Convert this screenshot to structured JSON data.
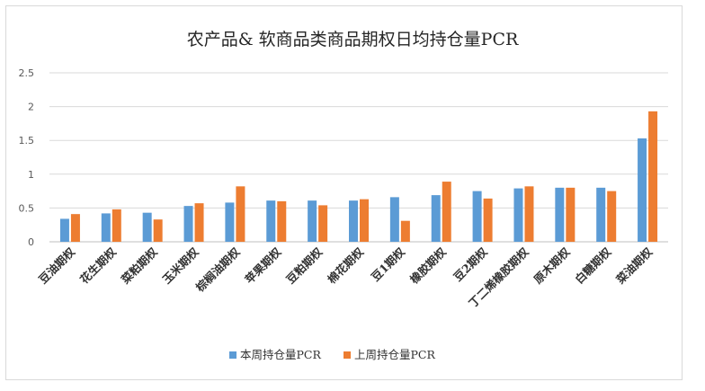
{
  "chart_data": {
    "type": "bar",
    "title": "农产品& 软商品类商品期权日均持仓量PCR",
    "categories": [
      "豆油期权",
      "花生期权",
      "菜粕期权",
      "玉米期权",
      "棕榈油期权",
      "苹果期权",
      "豆粕期权",
      "棉花期权",
      "豆1期权",
      "橡胶期权",
      "豆2期权",
      "丁二烯橡胶期权",
      "原木期权",
      "白糖期权",
      "菜油期权"
    ],
    "series": [
      {
        "name": "本周持仓量PCR",
        "color": "#5b9bd5",
        "values": [
          0.34,
          0.42,
          0.43,
          0.53,
          0.58,
          0.61,
          0.61,
          0.61,
          0.66,
          0.69,
          0.75,
          0.79,
          0.8,
          0.8,
          1.53
        ]
      },
      {
        "name": "上周持仓量PCR",
        "color": "#ed7d31",
        "values": [
          0.41,
          0.48,
          0.33,
          0.57,
          0.82,
          0.6,
          0.54,
          0.63,
          0.31,
          0.89,
          0.64,
          0.82,
          0.8,
          0.75,
          1.93
        ]
      }
    ],
    "ylim": [
      0,
      2.5
    ],
    "yticks": [
      "0",
      "0.5",
      "1",
      "1.5",
      "2",
      "2.5"
    ],
    "grid": true,
    "legend_position": "bottom"
  }
}
